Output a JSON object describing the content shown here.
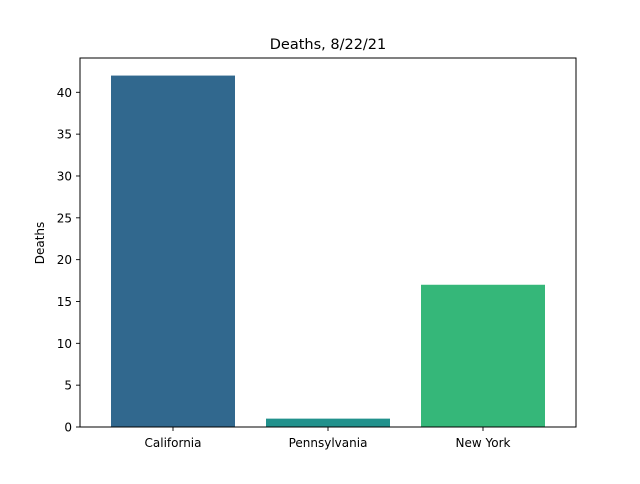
{
  "chart_data": {
    "type": "bar",
    "title": "Deaths, 8/22/21",
    "xlabel": "",
    "ylabel": "Deaths",
    "categories": [
      "California",
      "Pennsylvania",
      "New York"
    ],
    "values": [
      42,
      1,
      17
    ],
    "colors": [
      "#31688e",
      "#21918c",
      "#35b779"
    ],
    "ylim": [
      0,
      44.1
    ],
    "yticks": [
      0,
      5,
      10,
      15,
      20,
      25,
      30,
      35,
      40
    ],
    "grid": false,
    "legend": "none"
  }
}
